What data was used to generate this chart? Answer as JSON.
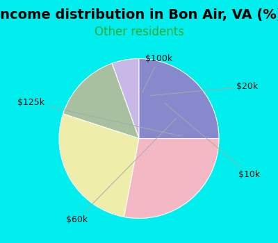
{
  "title": "Income distribution in Bon Air, VA (%)",
  "subtitle": "Other residents",
  "title_fontsize": 14,
  "subtitle_fontsize": 12,
  "outer_bg_color": "#00EEEE",
  "chart_bg_color_tl": "#d0ede0",
  "labels": [
    "$100k",
    "$20k",
    "$10k",
    "$60k",
    "$125k"
  ],
  "sizes": [
    5.5,
    14.5,
    27.0,
    28.0,
    25.0
  ],
  "colors": [
    "#c8b8e8",
    "#a8bfa0",
    "#eeeeaa",
    "#f4b8c4",
    "#8888cc"
  ],
  "start_angle": 90,
  "label_fontsize": 9,
  "label_color": "#111111",
  "subtitle_color": "#33aa33",
  "wedge_edge_color": "white",
  "wedge_linewidth": 0.8
}
